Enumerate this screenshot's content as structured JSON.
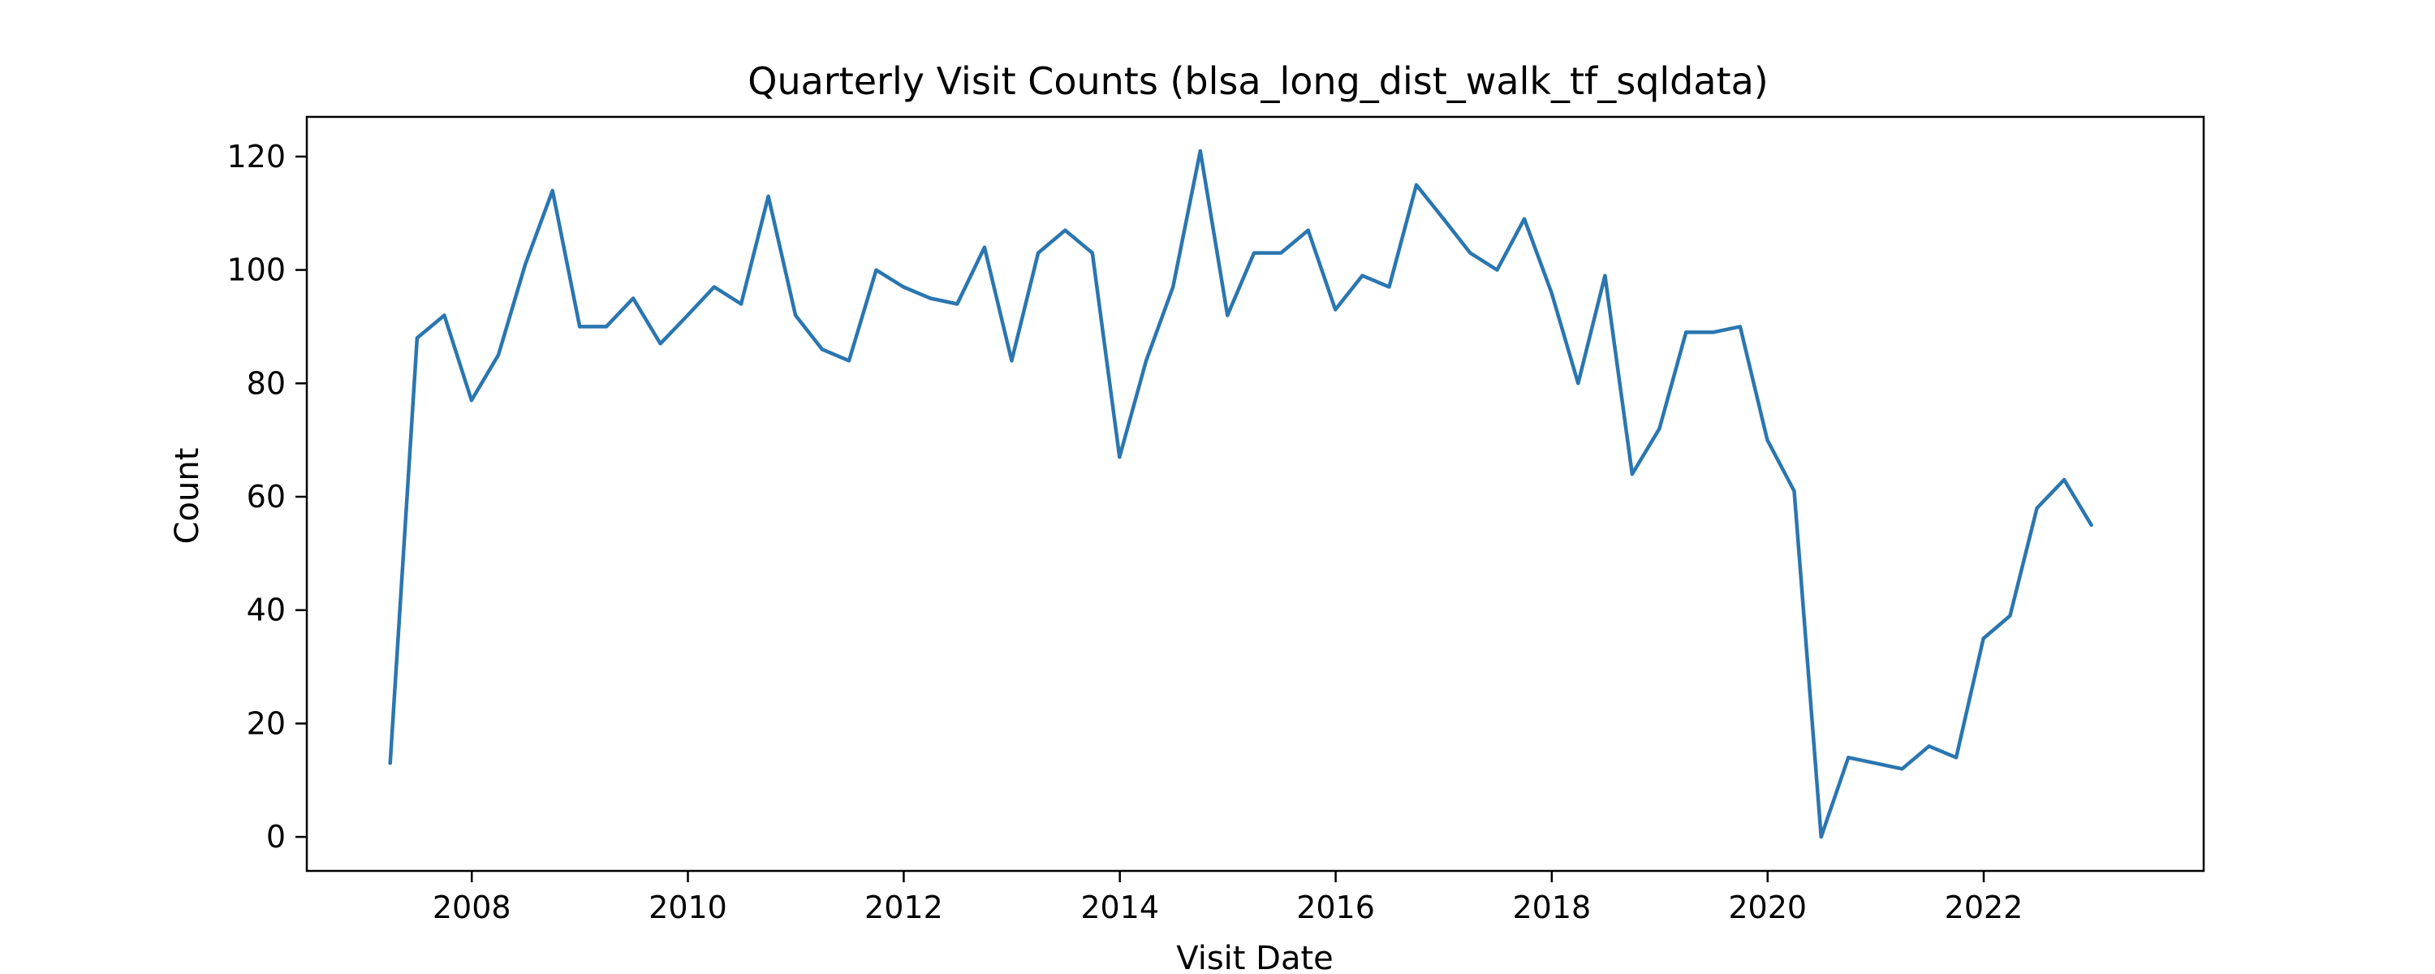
{
  "chart_data": {
    "type": "line",
    "title": "Quarterly Visit Counts (blsa_long_dist_walk_tf_sqldata)",
    "xlabel": "Visit Date",
    "ylabel": "Count",
    "xlim": [
      "2006-06-22",
      "2024-01-15"
    ],
    "ylim": [
      -6,
      127
    ],
    "xticks": [
      "2008",
      "2010",
      "2012",
      "2014",
      "2016",
      "2018",
      "2020",
      "2022"
    ],
    "yticks": [
      0,
      20,
      40,
      60,
      80,
      100,
      120
    ],
    "grid": false,
    "line_color": "#2a76b0",
    "series": [
      {
        "x": [
          "2007-03-31",
          "2007-06-30",
          "2007-09-30",
          "2007-12-31",
          "2008-03-31",
          "2008-06-30",
          "2008-09-30",
          "2008-12-31",
          "2009-03-31",
          "2009-06-30",
          "2009-09-30",
          "2009-12-31",
          "2010-03-31",
          "2010-06-30",
          "2010-09-30",
          "2010-12-31",
          "2011-03-31",
          "2011-06-30",
          "2011-09-30",
          "2011-12-31",
          "2012-03-31",
          "2012-06-30",
          "2012-09-30",
          "2012-12-31",
          "2013-03-31",
          "2013-06-30",
          "2013-09-30",
          "2013-12-31",
          "2014-03-31",
          "2014-06-30",
          "2014-09-30",
          "2014-12-31",
          "2015-03-31",
          "2015-06-30",
          "2015-09-30",
          "2015-12-31",
          "2016-03-31",
          "2016-06-30",
          "2016-09-30",
          "2016-12-31",
          "2017-03-31",
          "2017-06-30",
          "2017-09-30",
          "2017-12-31",
          "2018-03-31",
          "2018-06-30",
          "2018-09-30",
          "2018-12-31",
          "2019-03-31",
          "2019-06-30",
          "2019-09-30",
          "2019-12-31",
          "2020-03-31",
          "2020-06-30",
          "2020-09-30",
          "2020-12-31",
          "2021-03-31",
          "2021-06-30",
          "2021-09-30",
          "2021-12-31",
          "2022-03-31",
          "2022-06-30",
          "2022-09-30",
          "2022-12-31"
        ],
        "y": [
          13,
          88,
          92,
          77,
          85,
          101,
          114,
          90,
          90,
          95,
          87,
          92,
          97,
          94,
          113,
          92,
          86,
          84,
          100,
          97,
          95,
          94,
          104,
          84,
          103,
          107,
          103,
          67,
          84,
          97,
          121,
          92,
          103,
          103,
          107,
          93,
          99,
          97,
          115,
          109,
          103,
          100,
          109,
          96,
          80,
          99,
          64,
          72,
          89,
          89,
          90,
          70,
          61,
          0,
          14,
          13,
          12,
          16,
          14,
          35,
          39,
          58,
          63,
          55
        ]
      }
    ]
  }
}
